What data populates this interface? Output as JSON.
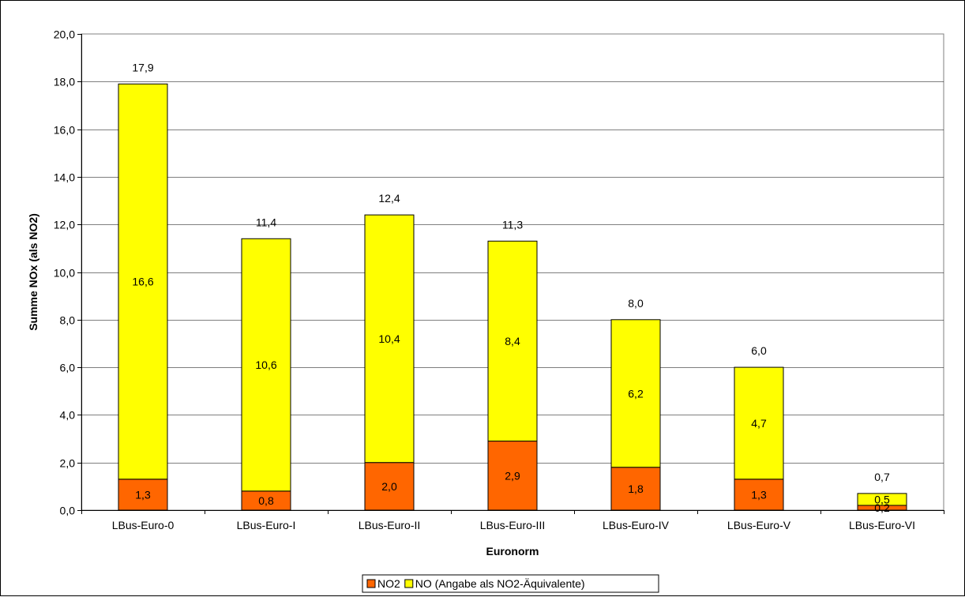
{
  "chart_data": {
    "type": "bar",
    "stacked": true,
    "title": "",
    "xlabel": "Euronorm",
    "ylabel": "Summe NOx (als NO2)",
    "ylim": [
      0,
      20
    ],
    "ytick_step": 2,
    "grid": true,
    "legend_position": "bottom",
    "categories": [
      "LBus-Euro-0",
      "LBus-Euro-I",
      "LBus-Euro-II",
      "LBus-Euro-III",
      "LBus-Euro-IV",
      "LBus-Euro-V",
      "LBus-Euro-VI"
    ],
    "series": [
      {
        "name": "NO2",
        "color": "#FF6600",
        "values": [
          1.3,
          0.8,
          2.0,
          2.9,
          1.8,
          1.3,
          0.2
        ],
        "labels": [
          "1,3",
          "0,8",
          "2,0",
          "2,9",
          "1,8",
          "1,3",
          "0,2"
        ]
      },
      {
        "name": "NO (Angabe als NO2-Äquivalente)",
        "color": "#FFFF00",
        "values": [
          16.6,
          10.6,
          10.4,
          8.4,
          6.2,
          4.7,
          0.5
        ],
        "labels": [
          "16,6",
          "10,6",
          "10,4",
          "8,4",
          "6,2",
          "4,7",
          "0,5"
        ]
      }
    ],
    "totals": [
      17.9,
      11.4,
      12.4,
      11.3,
      8.0,
      6.0,
      0.7
    ],
    "total_labels": [
      "17,9",
      "11,4",
      "12,4",
      "11,3",
      "8,0",
      "6,0",
      "0,7"
    ],
    "ytick_labels": [
      "0,0",
      "2,0",
      "4,0",
      "6,0",
      "8,0",
      "10,0",
      "12,0",
      "14,0",
      "16,0",
      "18,0",
      "20,0"
    ]
  }
}
